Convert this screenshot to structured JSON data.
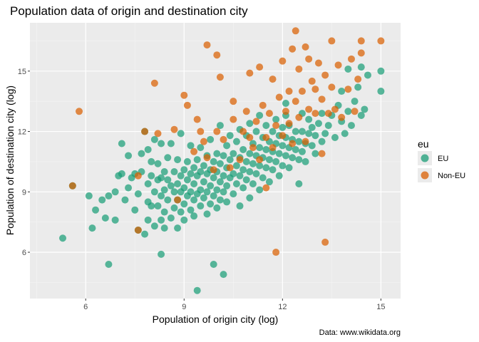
{
  "chart_data": {
    "type": "scatter",
    "title": "Population data of origin and destination city",
    "xlabel": "Population of origin city (log)",
    "ylabel": "Population of destination city (log)",
    "caption": "Data: www.wikidata.org",
    "xlim": [
      4.3,
      15.6
    ],
    "ylim": [
      3.7,
      17.4
    ],
    "x_ticks": [
      6,
      9,
      12,
      15
    ],
    "y_ticks": [
      6,
      9,
      12,
      15
    ],
    "grid": true,
    "legend": {
      "title": "eu",
      "position": "right"
    },
    "series": [
      {
        "name": "EU",
        "color": "#1b9e77",
        "points": [
          [
            5.3,
            6.7
          ],
          [
            5.6,
            9.3
          ],
          [
            6.1,
            8.8
          ],
          [
            6.2,
            7.2
          ],
          [
            6.3,
            8.1
          ],
          [
            6.5,
            8.6
          ],
          [
            6.6,
            7.7
          ],
          [
            6.7,
            8.8
          ],
          [
            6.7,
            5.4
          ],
          [
            6.9,
            7.6
          ],
          [
            6.9,
            9.0
          ],
          [
            7.0,
            9.8
          ],
          [
            7.1,
            9.9
          ],
          [
            7.1,
            11.4
          ],
          [
            7.2,
            8.6
          ],
          [
            7.3,
            9.2
          ],
          [
            7.3,
            10.8
          ],
          [
            7.4,
            9.7
          ],
          [
            7.5,
            8.1
          ],
          [
            7.5,
            9.9
          ],
          [
            7.6,
            7.1
          ],
          [
            7.6,
            8.9
          ],
          [
            7.7,
            10.0
          ],
          [
            7.7,
            10.9
          ],
          [
            7.8,
            12.0
          ],
          [
            7.8,
            6.9
          ],
          [
            7.9,
            7.6
          ],
          [
            7.9,
            8.5
          ],
          [
            7.9,
            9.4
          ],
          [
            7.9,
            11.1
          ],
          [
            8.0,
            8.3
          ],
          [
            8.0,
            9.8
          ],
          [
            8.0,
            10.5
          ],
          [
            8.1,
            7.3
          ],
          [
            8.1,
            9.0
          ],
          [
            8.1,
            11.6
          ],
          [
            8.2,
            8.3
          ],
          [
            8.2,
            9.6
          ],
          [
            8.2,
            10.4
          ],
          [
            8.3,
            7.6
          ],
          [
            8.3,
            8.8
          ],
          [
            8.3,
            9.7
          ],
          [
            8.3,
            11.4
          ],
          [
            8.3,
            5.9
          ],
          [
            8.4,
            7.2
          ],
          [
            8.4,
            8.0
          ],
          [
            8.4,
            9.1
          ],
          [
            8.4,
            10.0
          ],
          [
            8.5,
            8.6
          ],
          [
            8.5,
            9.6
          ],
          [
            8.5,
            10.7
          ],
          [
            8.6,
            7.7
          ],
          [
            8.6,
            9.3
          ],
          [
            8.6,
            11.4
          ],
          [
            8.7,
            8.2
          ],
          [
            8.7,
            9.0
          ],
          [
            8.7,
            10.0
          ],
          [
            8.8,
            7.2
          ],
          [
            8.8,
            8.6
          ],
          [
            8.8,
            9.4
          ],
          [
            8.8,
            10.6
          ],
          [
            8.9,
            8.0
          ],
          [
            8.9,
            9.0
          ],
          [
            8.9,
            9.8
          ],
          [
            8.9,
            11.9
          ],
          [
            9.0,
            7.6
          ],
          [
            9.0,
            8.4
          ],
          [
            9.0,
            9.2
          ],
          [
            9.0,
            10.1
          ],
          [
            9.1,
            8.8
          ],
          [
            9.1,
            9.6
          ],
          [
            9.1,
            10.5
          ],
          [
            9.2,
            8.1
          ],
          [
            9.2,
            9.0
          ],
          [
            9.2,
            9.9
          ],
          [
            9.2,
            11.3
          ],
          [
            9.3,
            7.8
          ],
          [
            9.3,
            8.6
          ],
          [
            9.3,
            9.4
          ],
          [
            9.3,
            10.2
          ],
          [
            9.4,
            8.9
          ],
          [
            9.4,
            9.8
          ],
          [
            9.4,
            10.6
          ],
          [
            9.4,
            4.1
          ],
          [
            9.5,
            8.3
          ],
          [
            9.5,
            9.1
          ],
          [
            9.5,
            10.0
          ],
          [
            9.5,
            11.2
          ],
          [
            9.6,
            8.7
          ],
          [
            9.6,
            9.5
          ],
          [
            9.6,
            10.3
          ],
          [
            9.7,
            7.9
          ],
          [
            9.7,
            9.0
          ],
          [
            9.7,
            9.9
          ],
          [
            9.7,
            10.8
          ],
          [
            9.8,
            8.4
          ],
          [
            9.8,
            9.3
          ],
          [
            9.8,
            10.1
          ],
          [
            9.8,
            11.6
          ],
          [
            9.9,
            8.8
          ],
          [
            9.9,
            9.7
          ],
          [
            9.9,
            10.5
          ],
          [
            9.9,
            5.4
          ],
          [
            10.0,
            8.2
          ],
          [
            10.0,
            9.1
          ],
          [
            10.0,
            10.0
          ],
          [
            10.0,
            10.9
          ],
          [
            10.1,
            8.6
          ],
          [
            10.1,
            9.5
          ],
          [
            10.1,
            10.4
          ],
          [
            10.1,
            12.3
          ],
          [
            10.2,
            9.0
          ],
          [
            10.2,
            9.8
          ],
          [
            10.2,
            10.8
          ],
          [
            10.2,
            4.9
          ],
          [
            10.3,
            8.5
          ],
          [
            10.3,
            9.3
          ],
          [
            10.3,
            10.2
          ],
          [
            10.3,
            11.3
          ],
          [
            10.4,
            9.7
          ],
          [
            10.4,
            10.6
          ],
          [
            10.4,
            11.8
          ],
          [
            10.5,
            8.9
          ],
          [
            10.5,
            9.9
          ],
          [
            10.5,
            10.9
          ],
          [
            10.6,
            9.4
          ],
          [
            10.6,
            10.3
          ],
          [
            10.6,
            11.5
          ],
          [
            10.7,
            8.3
          ],
          [
            10.7,
            9.8
          ],
          [
            10.7,
            10.7
          ],
          [
            10.7,
            12.1
          ],
          [
            10.8,
            9.2
          ],
          [
            10.8,
            10.1
          ],
          [
            10.8,
            11.1
          ],
          [
            10.9,
            9.6
          ],
          [
            10.9,
            10.5
          ],
          [
            10.9,
            11.8
          ],
          [
            11.0,
            8.7
          ],
          [
            11.0,
            10.0
          ],
          [
            11.0,
            10.9
          ],
          [
            11.0,
            12.4
          ],
          [
            11.1,
            9.4
          ],
          [
            11.1,
            10.4
          ],
          [
            11.1,
            11.4
          ],
          [
            11.2,
            9.9
          ],
          [
            11.2,
            10.8
          ],
          [
            11.2,
            12.0
          ],
          [
            11.3,
            9.1
          ],
          [
            11.3,
            10.3
          ],
          [
            11.3,
            11.2
          ],
          [
            11.3,
            12.8
          ],
          [
            11.4,
            9.7
          ],
          [
            11.4,
            10.7
          ],
          [
            11.4,
            11.7
          ],
          [
            11.5,
            10.2
          ],
          [
            11.5,
            11.1
          ],
          [
            11.5,
            12.3
          ],
          [
            11.6,
            9.5
          ],
          [
            11.6,
            10.6
          ],
          [
            11.6,
            11.5
          ],
          [
            11.7,
            10.1
          ],
          [
            11.7,
            11.0
          ],
          [
            11.7,
            12.0
          ],
          [
            11.8,
            10.5
          ],
          [
            11.8,
            11.4
          ],
          [
            11.8,
            12.6
          ],
          [
            11.9,
            9.8
          ],
          [
            11.9,
            10.9
          ],
          [
            11.9,
            11.8
          ],
          [
            12.0,
            10.3
          ],
          [
            12.0,
            11.3
          ],
          [
            12.0,
            12.2
          ],
          [
            12.1,
            10.8
          ],
          [
            12.1,
            11.7
          ],
          [
            12.1,
            12.8
          ],
          [
            12.2,
            10.2
          ],
          [
            12.2,
            11.2
          ],
          [
            12.2,
            12.3
          ],
          [
            12.3,
            10.7
          ],
          [
            12.3,
            11.6
          ],
          [
            12.4,
            11.1
          ],
          [
            12.4,
            12.0
          ],
          [
            12.5,
            10.6
          ],
          [
            12.5,
            11.5
          ],
          [
            12.5,
            9.4
          ],
          [
            12.6,
            11.0
          ],
          [
            12.6,
            12.0
          ],
          [
            12.7,
            10.5
          ],
          [
            12.7,
            11.4
          ],
          [
            12.8,
            11.9
          ],
          [
            12.8,
            12.6
          ],
          [
            12.9,
            11.3
          ],
          [
            12.9,
            12.2
          ],
          [
            13.0,
            10.9
          ],
          [
            13.0,
            11.8
          ],
          [
            13.1,
            12.4
          ],
          [
            13.2,
            11.5
          ],
          [
            13.2,
            12.9
          ],
          [
            13.3,
            11.9
          ],
          [
            13.4,
            12.3
          ],
          [
            13.5,
            12.8
          ],
          [
            13.6,
            11.7
          ],
          [
            13.7,
            13.3
          ],
          [
            13.8,
            12.5
          ],
          [
            13.9,
            11.9
          ],
          [
            14.0,
            13.0
          ],
          [
            14.1,
            12.3
          ],
          [
            14.2,
            13.5
          ],
          [
            14.3,
            14.2
          ],
          [
            14.4,
            12.8
          ],
          [
            14.4,
            15.2
          ],
          [
            14.5,
            13.1
          ],
          [
            14.6,
            14.8
          ],
          [
            15.0,
            15.0
          ],
          [
            15.0,
            14.0
          ],
          [
            14.0,
            15.1
          ],
          [
            13.8,
            14.0
          ],
          [
            12.6,
            12.9
          ],
          [
            12.1,
            13.4
          ]
        ]
      },
      {
        "name": "Non-EU",
        "color": "#d95f02",
        "points": [
          [
            5.6,
            9.3
          ],
          [
            5.8,
            13.0
          ],
          [
            7.6,
            7.1
          ],
          [
            7.6,
            9.8
          ],
          [
            7.8,
            12.0
          ],
          [
            8.1,
            14.4
          ],
          [
            8.2,
            11.9
          ],
          [
            8.7,
            12.1
          ],
          [
            8.8,
            8.6
          ],
          [
            9.0,
            13.8
          ],
          [
            9.1,
            13.3
          ],
          [
            9.3,
            11.0
          ],
          [
            9.4,
            12.6
          ],
          [
            9.5,
            12.0
          ],
          [
            9.6,
            11.5
          ],
          [
            9.7,
            10.7
          ],
          [
            9.7,
            16.3
          ],
          [
            9.9,
            10.1
          ],
          [
            10.0,
            15.8
          ],
          [
            10.0,
            12.0
          ],
          [
            10.1,
            14.7
          ],
          [
            10.2,
            11.6
          ],
          [
            10.4,
            10.2
          ],
          [
            10.5,
            13.5
          ],
          [
            10.5,
            12.6
          ],
          [
            10.7,
            10.6
          ],
          [
            10.8,
            12.0
          ],
          [
            10.9,
            13.0
          ],
          [
            11.0,
            11.7
          ],
          [
            11.0,
            14.9
          ],
          [
            11.1,
            11.2
          ],
          [
            11.2,
            12.5
          ],
          [
            11.3,
            10.6
          ],
          [
            11.3,
            15.2
          ],
          [
            11.4,
            13.3
          ],
          [
            11.5,
            11.7
          ],
          [
            11.5,
            9.2
          ],
          [
            11.6,
            12.9
          ],
          [
            11.7,
            11.2
          ],
          [
            11.7,
            14.6
          ],
          [
            11.8,
            6.0
          ],
          [
            11.8,
            12.3
          ],
          [
            11.9,
            13.7
          ],
          [
            12.0,
            11.8
          ],
          [
            12.0,
            15.5
          ],
          [
            12.1,
            13.0
          ],
          [
            12.2,
            12.4
          ],
          [
            12.2,
            14.0
          ],
          [
            12.3,
            11.4
          ],
          [
            12.3,
            16.1
          ],
          [
            12.4,
            13.5
          ],
          [
            12.4,
            17.0
          ],
          [
            12.5,
            12.7
          ],
          [
            12.5,
            15.1
          ],
          [
            12.6,
            14.0
          ],
          [
            12.7,
            11.5
          ],
          [
            12.7,
            16.2
          ],
          [
            12.8,
            13.1
          ],
          [
            12.8,
            15.6
          ],
          [
            12.9,
            14.5
          ],
          [
            13.0,
            12.9
          ],
          [
            13.0,
            14.1
          ],
          [
            13.1,
            15.4
          ],
          [
            13.2,
            13.6
          ],
          [
            13.2,
            10.9
          ],
          [
            13.3,
            14.8
          ],
          [
            13.3,
            6.5
          ],
          [
            13.4,
            12.9
          ],
          [
            13.5,
            14.2
          ],
          [
            13.5,
            16.5
          ],
          [
            13.6,
            13.1
          ],
          [
            13.7,
            15.3
          ],
          [
            13.8,
            12.7
          ],
          [
            14.0,
            14.1
          ],
          [
            14.1,
            15.6
          ],
          [
            14.2,
            13.0
          ],
          [
            14.3,
            14.6
          ],
          [
            14.4,
            16.5
          ],
          [
            14.4,
            15.9
          ],
          [
            15.0,
            16.5
          ]
        ]
      }
    ]
  }
}
